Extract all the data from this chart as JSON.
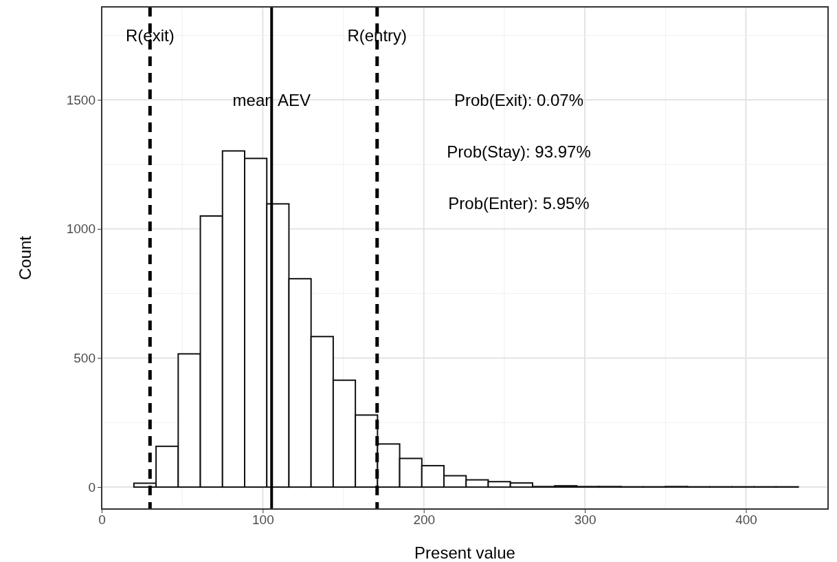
{
  "chart_data": {
    "type": "histogram",
    "xlabel": "Present value",
    "ylabel": "Count",
    "bins": [
      20,
      33.75,
      47.5,
      61.25,
      75,
      88.75,
      102.5,
      116.25,
      130,
      143.75,
      157.5,
      171.25,
      185,
      198.75,
      212.5,
      226.25,
      240,
      253.75,
      267.5,
      281.25,
      295,
      308.75,
      322.5,
      336.25,
      350,
      363.75,
      377.5,
      391.25,
      405,
      418.75,
      432.5
    ],
    "values": [
      15,
      158,
      516,
      1050,
      1302,
      1273,
      1097,
      807,
      583,
      414,
      279,
      167,
      111,
      83,
      44,
      28,
      21,
      16,
      2,
      5,
      2,
      2,
      1,
      1,
      2,
      1,
      1,
      1,
      1,
      1
    ],
    "color": "#ffffff",
    "xlim": [
      0,
      451
    ],
    "xticks": [
      0,
      100,
      200,
      300,
      400
    ],
    "ylim": [
      -85,
      1860
    ],
    "yticks": [
      0,
      500,
      1000,
      1500
    ],
    "grid": true,
    "ref_lines": [
      {
        "axis": "x",
        "value": 30,
        "label": "R(exit)",
        "line_style": "dashed",
        "color": "#000000"
      },
      {
        "axis": "x",
        "value": 105.5,
        "label": "mean AEV",
        "line_style": "solid",
        "color": "#000000"
      },
      {
        "axis": "x",
        "value": 171,
        "label": "R(entry)",
        "line_style": "dashed",
        "color": "#000000"
      }
    ],
    "annotations": [
      "Prob(Exit): 0.07%",
      "Prob(Stay): 93.97%",
      "Prob(Enter): 5.95%"
    ]
  }
}
